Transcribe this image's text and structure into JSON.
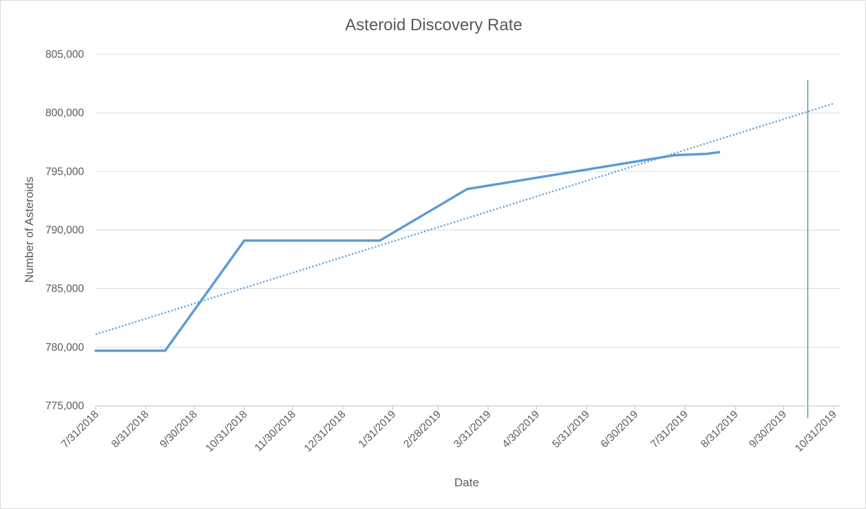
{
  "chart_data": {
    "type": "line",
    "title": "Asteroid Discovery Rate",
    "xlabel": "Date",
    "ylabel": "Number of Asteroids",
    "ylim": [
      775000,
      805000
    ],
    "y_ticks": [
      "775,000",
      "780,000",
      "785,000",
      "790,000",
      "795,000",
      "800,000",
      "805,000"
    ],
    "xlim": [
      "2018-07-31",
      "2019-10-31"
    ],
    "x_ticks": [
      "7/31/2018",
      "8/31/2018",
      "9/30/2018",
      "10/31/2018",
      "11/30/2018",
      "12/31/2018",
      "1/31/2019",
      "2/28/2019",
      "3/31/2019",
      "4/30/2019",
      "5/31/2019",
      "6/30/2019",
      "7/31/2019",
      "8/31/2019",
      "9/30/2019",
      "10/31/2019"
    ],
    "grid": "horizontal",
    "legend": "none",
    "colors": {
      "series": "#5b9bd5",
      "marker_line": "#2e8b9a",
      "grid": "#d9d9d9",
      "axis": "#bfbfbf",
      "text": "#595959"
    },
    "series": [
      {
        "style": "solid",
        "x": [
          "2018-07-31",
          "2018-09-12",
          "2018-10-31",
          "2019-01-23",
          "2019-03-18",
          "2019-07-25",
          "2019-08-13",
          "2019-08-21"
        ],
        "y": [
          779700,
          779700,
          789100,
          789100,
          793500,
          796400,
          796500,
          796650
        ]
      },
      {
        "style": "dotted",
        "role": "trendline",
        "x": [
          "2018-07-31",
          "2019-10-31"
        ],
        "y": [
          781100,
          800800
        ]
      }
    ],
    "reference_line": {
      "orientation": "vertical",
      "x": "2019-10-15"
    }
  }
}
